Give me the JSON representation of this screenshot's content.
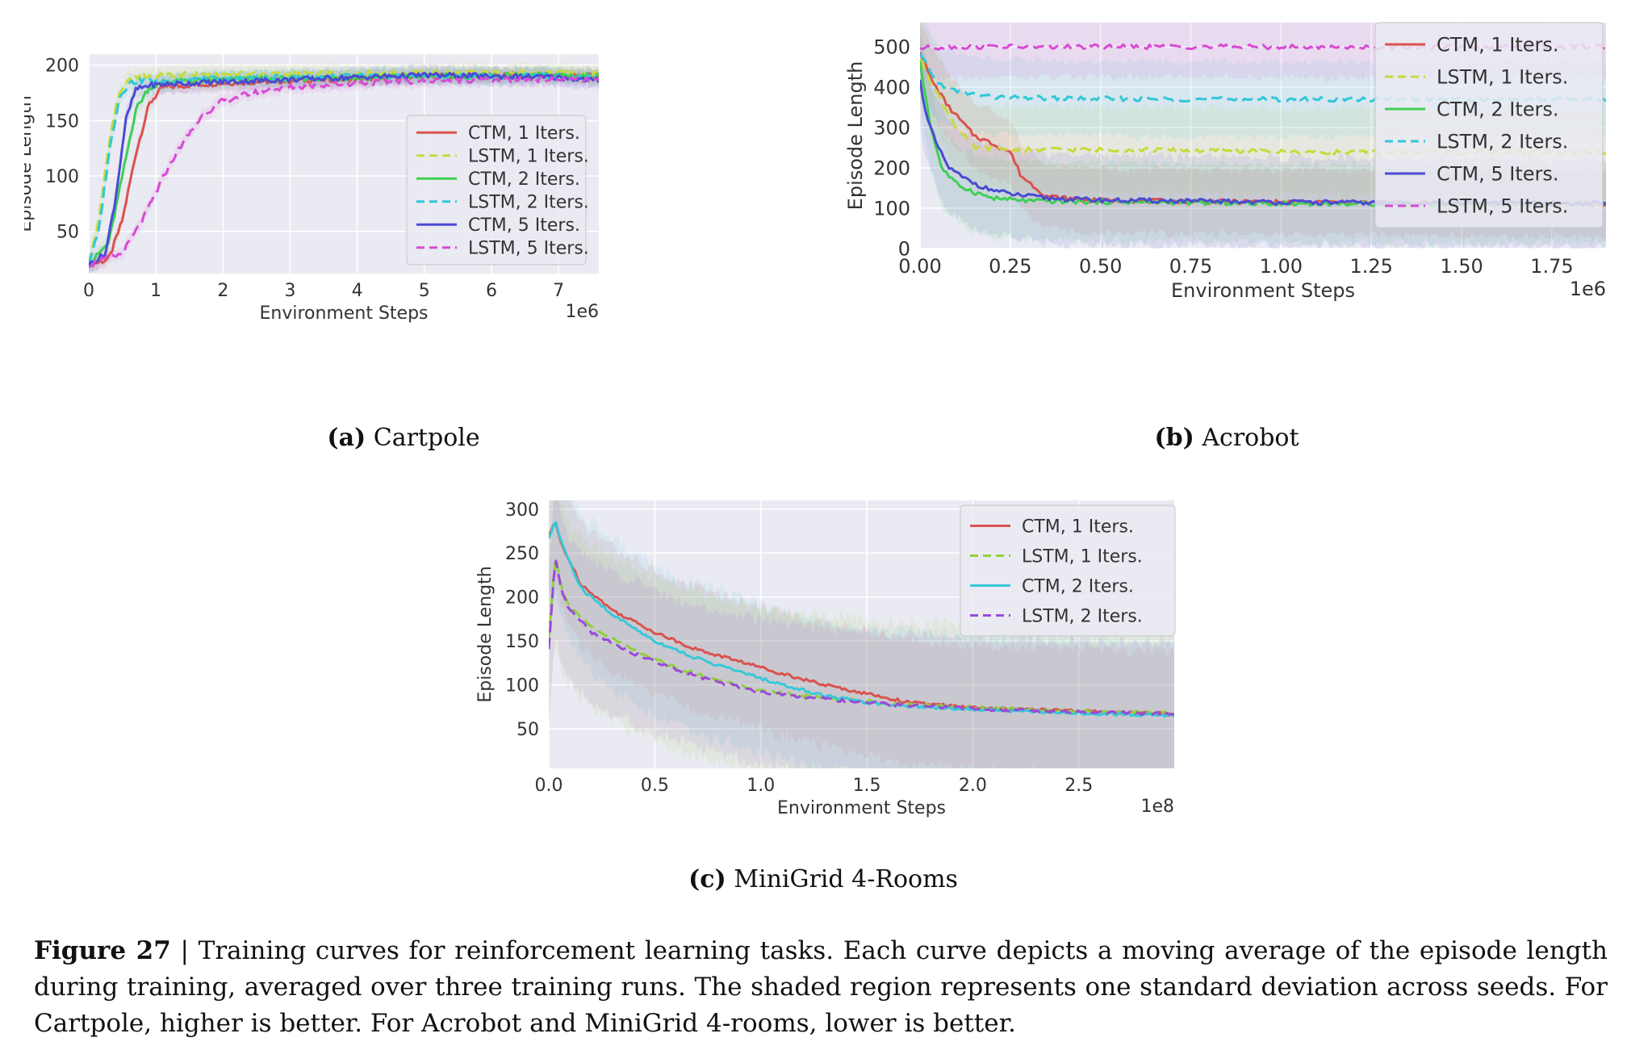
{
  "figure": {
    "number_label": "Figure 27",
    "separator": " | ",
    "caption": "Training curves for reinforcement learning tasks. Each curve depicts a moving average of the episode length during training, averaged over three training runs. The shaded region represents one standard deviation across seeds. For Cartpole, higher is better. For Acrobot and MiniGrid 4-rooms, lower is better."
  },
  "subcaptions": [
    {
      "tag": "(a)",
      "title": "Cartpole"
    },
    {
      "tag": "(b)",
      "title": "Acrobot"
    },
    {
      "tag": "(c)",
      "title": "MiniGrid 4-Rooms"
    }
  ],
  "colors": {
    "bg": "#eaeaf2",
    "grid": "#ffffff",
    "ctm1": "#d9534f",
    "lstm1": "#c8d93a",
    "ctm2": "#3fcf55",
    "lstm2": "#2fc8d8",
    "ctm5": "#4a4ad4",
    "lstm5": "#d84ad4",
    "mg_ctm1": "#d9534f",
    "mg_lstm1": "#8fd13a",
    "mg_ctm2": "#38c8d8",
    "mg_lstm2": "#9a4ad8"
  },
  "chart_data": [
    {
      "id": "cartpole",
      "type": "line",
      "title": "",
      "xlabel": "Environment Steps",
      "ylabel": "Episode Length",
      "x_scale_label": "1e6",
      "xlim": [
        0,
        7.6
      ],
      "ylim": [
        12,
        210
      ],
      "xticks": [
        0,
        1,
        2,
        3,
        4,
        5,
        6,
        7
      ],
      "xtick_labels": [
        "0",
        "1",
        "2",
        "3",
        "4",
        "5",
        "6",
        "7"
      ],
      "yticks": [
        50,
        100,
        150,
        200
      ],
      "ytick_labels": [
        "50",
        "100",
        "150",
        "200"
      ],
      "legend_position": "center-right",
      "series": [
        {
          "name": "CTM, 1 Iters.",
          "style": "solid",
          "color_key": "ctm1",
          "x": [
            0,
            0.3,
            0.5,
            0.7,
            0.9,
            1.1,
            1.5,
            2,
            3,
            4,
            5,
            6,
            7,
            7.6
          ],
          "y": [
            20,
            25,
            60,
            120,
            165,
            180,
            182,
            184,
            186,
            188,
            190,
            191,
            191,
            190
          ]
        },
        {
          "name": "LSTM, 1 Iters.",
          "style": "dashed",
          "color_key": "lstm1",
          "x": [
            0,
            0.15,
            0.3,
            0.45,
            0.6,
            0.8,
            1.2,
            2,
            3,
            4,
            5,
            6,
            7,
            7.6
          ],
          "y": [
            22,
            60,
            130,
            175,
            186,
            190,
            191,
            192,
            192,
            193,
            193,
            193,
            193,
            192
          ]
        },
        {
          "name": "CTM, 2 Iters.",
          "style": "solid",
          "color_key": "ctm2",
          "x": [
            0,
            0.3,
            0.5,
            0.7,
            0.9,
            1.2,
            1.6,
            2,
            3,
            4,
            5,
            6,
            7,
            7.6
          ],
          "y": [
            20,
            40,
            100,
            160,
            180,
            185,
            186,
            187,
            188,
            189,
            190,
            190,
            191,
            190
          ]
        },
        {
          "name": "LSTM, 2 Iters.",
          "style": "dashed",
          "color_key": "lstm2",
          "x": [
            0,
            0.15,
            0.3,
            0.45,
            0.6,
            0.8,
            1.2,
            2,
            3,
            4,
            5,
            6,
            7,
            7.6
          ],
          "y": [
            22,
            50,
            120,
            170,
            184,
            186,
            186,
            188,
            189,
            190,
            190,
            190,
            190,
            189
          ]
        },
        {
          "name": "CTM, 5 Iters.",
          "style": "solid",
          "color_key": "ctm5",
          "x": [
            0,
            0.25,
            0.4,
            0.55,
            0.7,
            0.9,
            1.2,
            2,
            3,
            4,
            5,
            6,
            7,
            7.6
          ],
          "y": [
            20,
            30,
            80,
            150,
            178,
            182,
            183,
            185,
            187,
            189,
            191,
            190,
            189,
            186
          ]
        },
        {
          "name": "LSTM, 5 Iters.",
          "style": "dashed",
          "color_key": "lstm5",
          "x": [
            0,
            0.5,
            0.8,
            1.0,
            1.2,
            1.4,
            1.7,
            2.0,
            2.5,
            3,
            4,
            5,
            6,
            7,
            7.6
          ],
          "y": [
            20,
            30,
            60,
            85,
            110,
            130,
            155,
            168,
            176,
            180,
            184,
            186,
            187,
            187,
            186
          ]
        }
      ]
    },
    {
      "id": "acrobot",
      "type": "line",
      "title": "",
      "xlabel": "Environment Steps",
      "ylabel": "Episode Length",
      "x_scale_label": "1e6",
      "xlim": [
        0,
        1.9
      ],
      "ylim": [
        0,
        560
      ],
      "xticks": [
        0,
        0.25,
        0.5,
        0.75,
        1.0,
        1.25,
        1.5,
        1.75
      ],
      "xtick_labels": [
        "0.00",
        "0.25",
        "0.50",
        "0.75",
        "1.00",
        "1.25",
        "1.50",
        "1.75"
      ],
      "yticks": [
        0,
        100,
        200,
        300,
        400,
        500
      ],
      "ytick_labels": [
        "0",
        "100",
        "200",
        "300",
        "400",
        "500"
      ],
      "legend_position": "upper-right",
      "series": [
        {
          "name": "CTM, 1 Iters.",
          "style": "solid",
          "color_key": "ctm1",
          "x": [
            0,
            0.03,
            0.08,
            0.12,
            0.15,
            0.2,
            0.25,
            0.28,
            0.35,
            0.45,
            0.6,
            1.0,
            1.5,
            1.9
          ],
          "y": [
            490,
            420,
            350,
            310,
            280,
            260,
            240,
            180,
            130,
            120,
            118,
            115,
            112,
            110
          ]
        },
        {
          "name": "LSTM, 1 Iters.",
          "style": "dashed",
          "color_key": "lstm1",
          "x": [
            0,
            0.05,
            0.1,
            0.15,
            0.3,
            0.6,
            1.0,
            1.5,
            1.9
          ],
          "y": [
            470,
            380,
            300,
            250,
            245,
            245,
            240,
            238,
            238
          ]
        },
        {
          "name": "CTM, 2 Iters.",
          "style": "solid",
          "color_key": "ctm2",
          "x": [
            0,
            0.03,
            0.06,
            0.1,
            0.15,
            0.2,
            0.3,
            0.5,
            1.0,
            1.5,
            1.9
          ],
          "y": [
            460,
            300,
            200,
            160,
            140,
            125,
            118,
            116,
            112,
            110,
            110
          ]
        },
        {
          "name": "LSTM, 2 Iters.",
          "style": "dashed",
          "color_key": "lstm2",
          "x": [
            0,
            0.05,
            0.1,
            0.2,
            0.4,
            0.8,
            1.2,
            1.6,
            1.9
          ],
          "y": [
            480,
            410,
            390,
            375,
            372,
            370,
            370,
            370,
            370
          ]
        },
        {
          "name": "CTM, 5 Iters.",
          "style": "solid",
          "color_key": "ctm5",
          "x": [
            0,
            0.02,
            0.05,
            0.08,
            0.12,
            0.18,
            0.25,
            0.35,
            0.5,
            1.0,
            1.5,
            1.9
          ],
          "y": [
            415,
            320,
            250,
            200,
            175,
            150,
            135,
            125,
            120,
            115,
            112,
            112
          ]
        },
        {
          "name": "LSTM, 5 Iters.",
          "style": "dashed",
          "color_key": "lstm5",
          "x": [
            0,
            0.1,
            0.3,
            0.6,
            0.9,
            1.2,
            1.5,
            1.9
          ],
          "y": [
            497,
            500,
            500,
            500,
            500,
            499,
            500,
            500
          ]
        }
      ]
    },
    {
      "id": "minigrid",
      "type": "line",
      "title": "",
      "xlabel": "Environment Steps",
      "ylabel": "Episode Length",
      "x_scale_label": "1e8",
      "xlim": [
        0,
        2.95
      ],
      "ylim": [
        5,
        310
      ],
      "xticks": [
        0,
        0.5,
        1.0,
        1.5,
        2.0,
        2.5
      ],
      "xtick_labels": [
        "0.0",
        "0.5",
        "1.0",
        "1.5",
        "2.0",
        "2.5"
      ],
      "yticks": [
        50,
        100,
        150,
        200,
        250,
        300
      ],
      "ytick_labels": [
        "50",
        "100",
        "150",
        "200",
        "250",
        "300"
      ],
      "legend_position": "upper-right",
      "series": [
        {
          "name": "CTM, 1 Iters.",
          "style": "solid",
          "color_key": "mg_ctm1",
          "x": [
            0,
            0.03,
            0.06,
            0.15,
            0.3,
            0.5,
            0.7,
            0.9,
            1.1,
            1.3,
            1.5,
            1.7,
            2.0,
            2.5,
            2.95
          ],
          "y": [
            270,
            285,
            260,
            215,
            185,
            160,
            140,
            127,
            113,
            100,
            90,
            80,
            74,
            70,
            67
          ]
        },
        {
          "name": "LSTM, 1 Iters.",
          "style": "dashed",
          "color_key": "mg_lstm1",
          "x": [
            0,
            0.03,
            0.06,
            0.1,
            0.2,
            0.4,
            0.6,
            0.8,
            1.0,
            1.3,
            1.6,
            2.0,
            2.5,
            2.95
          ],
          "y": [
            150,
            250,
            210,
            190,
            165,
            140,
            120,
            105,
            93,
            85,
            79,
            74,
            70,
            68
          ]
        },
        {
          "name": "CTM, 2 Iters.",
          "style": "solid",
          "color_key": "mg_ctm2",
          "x": [
            0,
            0.03,
            0.06,
            0.15,
            0.3,
            0.5,
            0.7,
            0.9,
            1.1,
            1.3,
            1.5,
            1.7,
            2.0,
            2.5,
            2.95
          ],
          "y": [
            265,
            288,
            262,
            210,
            180,
            150,
            130,
            115,
            100,
            88,
            80,
            76,
            72,
            68,
            65
          ]
        },
        {
          "name": "LSTM, 2 Iters.",
          "style": "dashed",
          "color_key": "mg_lstm2",
          "x": [
            0,
            0.03,
            0.06,
            0.1,
            0.2,
            0.4,
            0.6,
            0.8,
            1.0,
            1.3,
            1.6,
            2.0,
            2.5,
            2.95
          ],
          "y": [
            140,
            245,
            205,
            185,
            160,
            136,
            117,
            103,
            92,
            84,
            78,
            73,
            69,
            67
          ]
        }
      ]
    }
  ]
}
